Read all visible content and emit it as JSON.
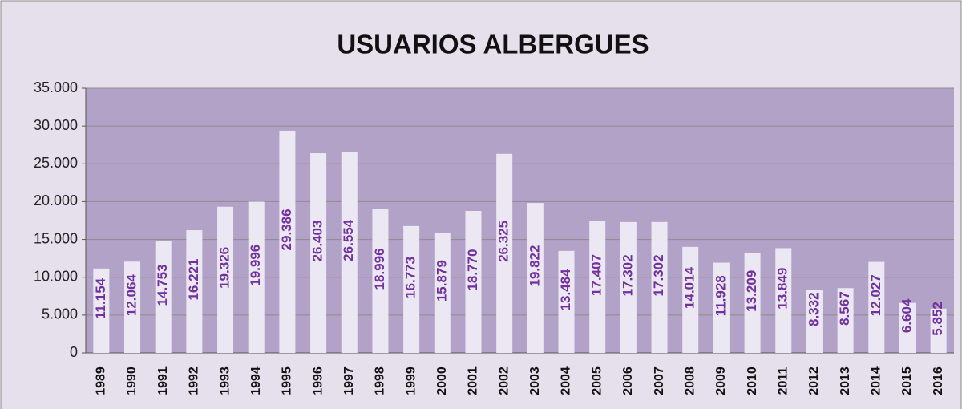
{
  "chart_data": {
    "type": "bar",
    "title": "USUARIOS ALBERGUES",
    "categories": [
      "1989",
      "1990",
      "1991",
      "1992",
      "1993",
      "1994",
      "1995",
      "1996",
      "1997",
      "1998",
      "1999",
      "2000",
      "2001",
      "2002",
      "2003",
      "2004",
      "2005",
      "2006",
      "2007",
      "2008",
      "2009",
      "2010",
      "2011",
      "2012",
      "2013",
      "2014",
      "2015",
      "2016"
    ],
    "values": [
      11154,
      12064,
      14753,
      16221,
      19326,
      19996,
      29386,
      26403,
      26554,
      18996,
      16773,
      15879,
      18770,
      26325,
      19822,
      13484,
      17407,
      17302,
      17302,
      14014,
      11928,
      13209,
      13849,
      8332,
      8567,
      12027,
      6604,
      5852
    ],
    "value_labels": [
      "11.154",
      "12.064",
      "14.753",
      "16.221",
      "19.326",
      "19.996",
      "29.386",
      "26.403",
      "26.554",
      "18.996",
      "16.773",
      "15.879",
      "18.770",
      "26.325",
      "19.822",
      "13.484",
      "17.407",
      "17.302",
      "17.302",
      "14.014",
      "11.928",
      "13.209",
      "13.849",
      "8.332",
      "8.567",
      "12.027",
      "6.604",
      "5.852"
    ],
    "color": "#ece8f3",
    "label_color": "#7030a0",
    "ylim": [
      0,
      35000
    ],
    "yticks": [
      0,
      {
        "value": 5000,
        "label": "5.000"
      },
      {
        "value": 10000,
        "label": "10.000"
      },
      {
        "value": 15000,
        "label": "15.000"
      },
      {
        "value": 20000,
        "label": "20.000"
      },
      {
        "value": 25000,
        "label": "25.000"
      },
      {
        "value": 30000,
        "label": "30.000"
      },
      {
        "value": 35000,
        "label": "35.000"
      }
    ],
    "grid": true
  }
}
